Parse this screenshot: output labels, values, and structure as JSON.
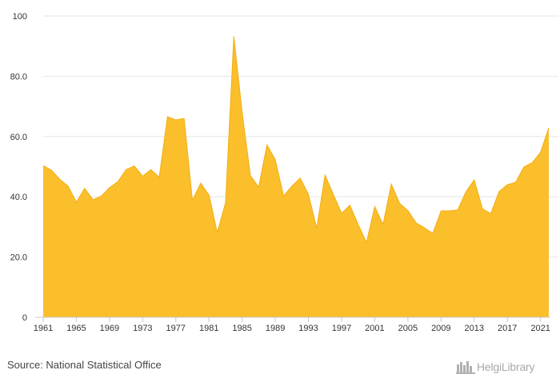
{
  "chart_data": {
    "type": "area",
    "x": [
      1961,
      1962,
      1963,
      1964,
      1965,
      1966,
      1967,
      1968,
      1969,
      1970,
      1971,
      1972,
      1973,
      1974,
      1975,
      1976,
      1977,
      1978,
      1979,
      1980,
      1981,
      1982,
      1983,
      1984,
      1985,
      1986,
      1987,
      1988,
      1989,
      1990,
      1991,
      1992,
      1993,
      1994,
      1995,
      1996,
      1997,
      1998,
      1999,
      2000,
      2001,
      2002,
      2003,
      2004,
      2005,
      2006,
      2007,
      2008,
      2009,
      2010,
      2011,
      2012,
      2013,
      2014,
      2015,
      2016,
      2017,
      2018,
      2019,
      2020,
      2021,
      2022
    ],
    "series": [
      {
        "values": [
          50.3,
          48.8,
          45.8,
          43.5,
          38.2,
          42.8,
          39.0,
          40.2,
          43.0,
          45.0,
          49.0,
          50.2,
          46.8,
          49.0,
          46.5,
          66.6,
          65.5,
          66.0,
          38.8,
          44.5,
          40.6,
          28.1,
          38.0,
          93.2,
          68.0,
          47.0,
          43.2,
          57.2,
          52.3,
          40.2,
          43.5,
          46.2,
          40.8,
          29.5,
          47.2,
          40.8,
          34.5,
          37.2,
          30.8,
          24.8,
          36.7,
          30.8,
          44.2,
          37.8,
          35.4,
          31.3,
          29.7,
          27.8,
          35.3,
          35.3,
          35.6,
          41.6,
          45.6,
          36.0,
          34.4,
          41.7,
          44.0,
          44.8,
          49.9,
          51.3,
          54.7,
          62.9
        ]
      }
    ],
    "xticks": [
      "1961",
      "1965",
      "1969",
      "1973",
      "1977",
      "1981",
      "1985",
      "1989",
      "1993",
      "1997",
      "2001",
      "2005",
      "2009",
      "2013",
      "2017",
      "2021"
    ],
    "yticks": [
      "0",
      "20.0",
      "40.0",
      "60.0",
      "80.0",
      "100"
    ],
    "ylim": [
      0,
      100
    ],
    "xlim": [
      1961,
      2022
    ],
    "grid": true,
    "colors": {
      "fill": "#fbbf2c",
      "stroke": "#f2ad12",
      "grid": "#e6e6e6",
      "axis": "#c8c8c8"
    }
  },
  "footer": {
    "source": "Source: National Statistical Office",
    "logo_text": "HelgiLibrary"
  }
}
